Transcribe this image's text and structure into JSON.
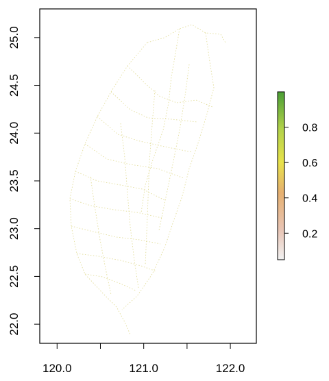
{
  "chart_data": {
    "type": "heatmap",
    "title": "",
    "xlabel": "",
    "ylabel": "",
    "xlim": [
      119.8,
      122.3
    ],
    "ylim": [
      21.8,
      25.3
    ],
    "x_ticks": [
      120.0,
      120.5,
      121.0,
      121.5,
      122.0
    ],
    "x_tick_labels": [
      "120.0",
      "",
      "121.0",
      "",
      "122.0"
    ],
    "y_ticks": [
      22.0,
      22.5,
      23.0,
      23.5,
      24.0,
      24.5,
      25.0
    ],
    "y_tick_labels": [
      "22.0",
      "22.5",
      "23.0",
      "23.5",
      "24.0",
      "24.5",
      "25.0"
    ],
    "grid": false,
    "colorbar": {
      "range": [
        0.05,
        1.0
      ],
      "ticks": [
        0.2,
        0.4,
        0.6,
        0.8
      ],
      "tick_labels": [
        "0.2",
        "0.4",
        "0.6",
        "0.8"
      ],
      "colors": [
        "#f2f2f2",
        "#e8c4b4",
        "#e6b070",
        "#e8e24a",
        "#b2d24a",
        "#4a9e35"
      ],
      "placement": "right"
    },
    "content": "sparse road-network cell values over Taiwan, mostly low to mid (pale yellow/green)"
  }
}
